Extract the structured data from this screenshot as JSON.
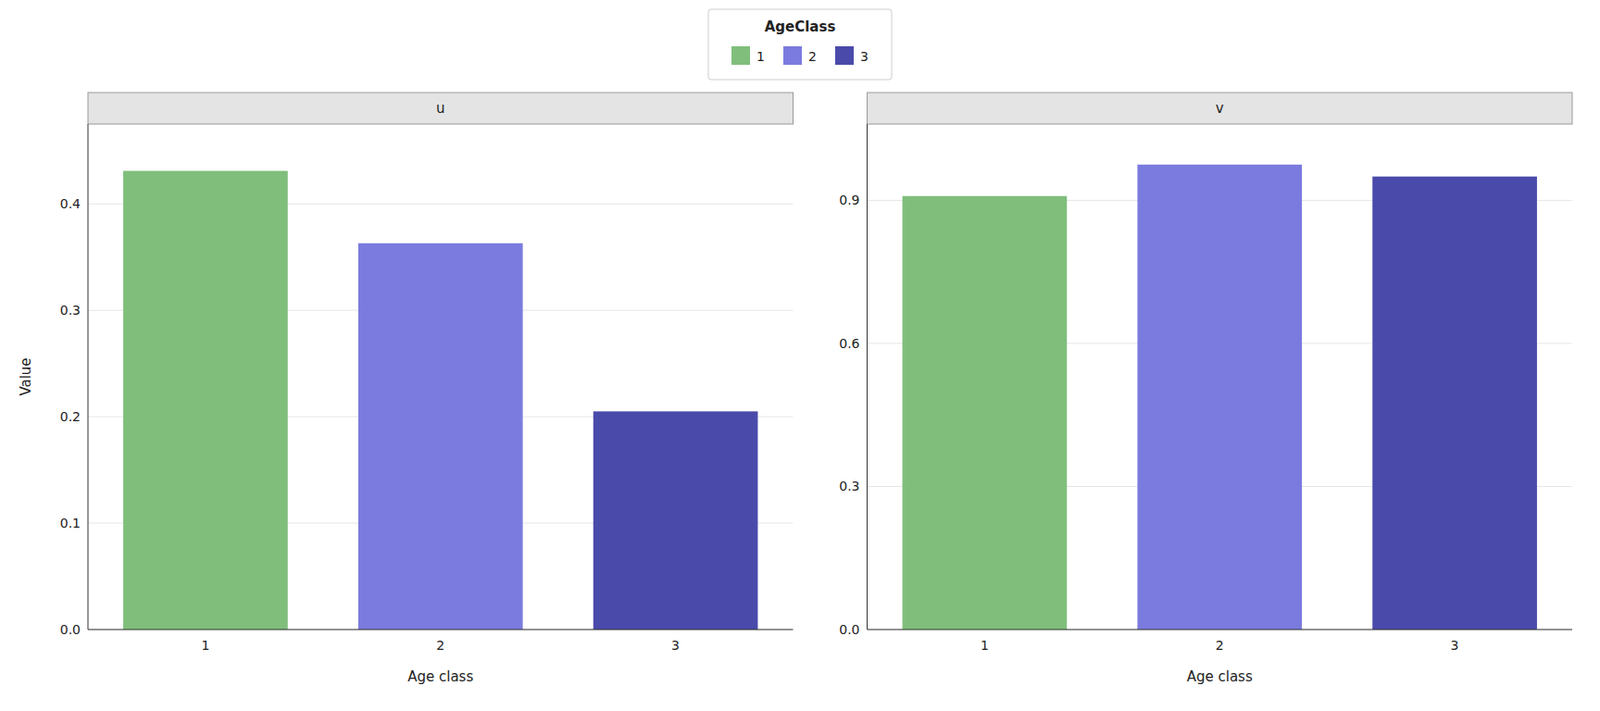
{
  "chart_data": [
    {
      "type": "bar",
      "title": "u",
      "xlabel": "Age class",
      "ylabel": "Value",
      "categories": [
        "1",
        "2",
        "3"
      ],
      "values": [
        0.431,
        0.363,
        0.205
      ],
      "colors": [
        "#7fbf7b",
        "#7b7bdf",
        "#4a4aab"
      ],
      "ylim": [
        0,
        0.475
      ],
      "yticks": [
        {
          "value": 0.0,
          "label": "0.0"
        },
        0.1,
        0.2,
        0.3,
        0.4
      ],
      "grid": true,
      "legend": "top",
      "legend_title": "AgeClass"
    },
    {
      "type": "bar",
      "title": "v",
      "xlabel": "Age class",
      "categories": [
        "1",
        "2",
        "3"
      ],
      "values": [
        0.909,
        0.975,
        0.95
      ],
      "colors": [
        "#7fbf7b",
        "#7b7bdf",
        "#4a4aab"
      ],
      "ylim": [
        0,
        1.06
      ],
      "yticks": [
        {
          "value": 0.0,
          "label": "0.0"
        },
        0.3,
        0.6,
        0.9
      ],
      "grid": true
    }
  ]
}
